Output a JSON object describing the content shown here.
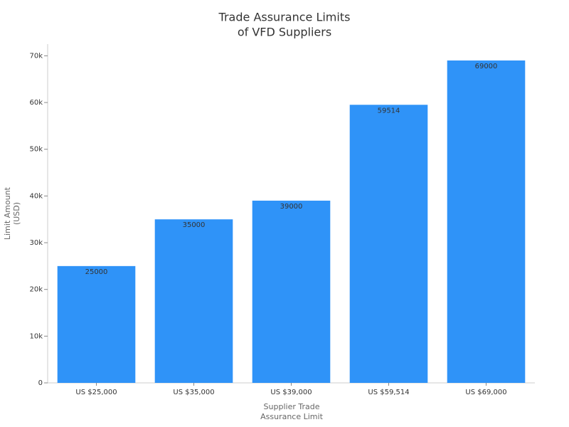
{
  "chart_data": {
    "type": "bar",
    "title": [
      "Trade Assurance Limits",
      "of VFD Suppliers"
    ],
    "x_label": [
      "Supplier Trade",
      "Assurance Limit"
    ],
    "y_label": [
      "Limit Amount",
      "(USD)"
    ],
    "categories": [
      "US $25,000",
      "US $35,000",
      "US $39,000",
      "US $59,514",
      "US $69,000"
    ],
    "values": [
      25000,
      35000,
      39000,
      59514,
      69000
    ],
    "color": "#2f93f8",
    "ylim": [
      0,
      72500
    ],
    "yticks": [
      0,
      {
        "value": 10000,
        "label": "10k"
      },
      {
        "value": 20000,
        "label": "20k"
      },
      {
        "value": 30000,
        "label": "30k"
      },
      {
        "value": 40000,
        "label": "40k"
      },
      {
        "value": 50000,
        "label": "50k"
      },
      {
        "value": 60000,
        "label": "60k"
      },
      {
        "value": 70000,
        "label": "70k"
      }
    ],
    "grid": false
  }
}
